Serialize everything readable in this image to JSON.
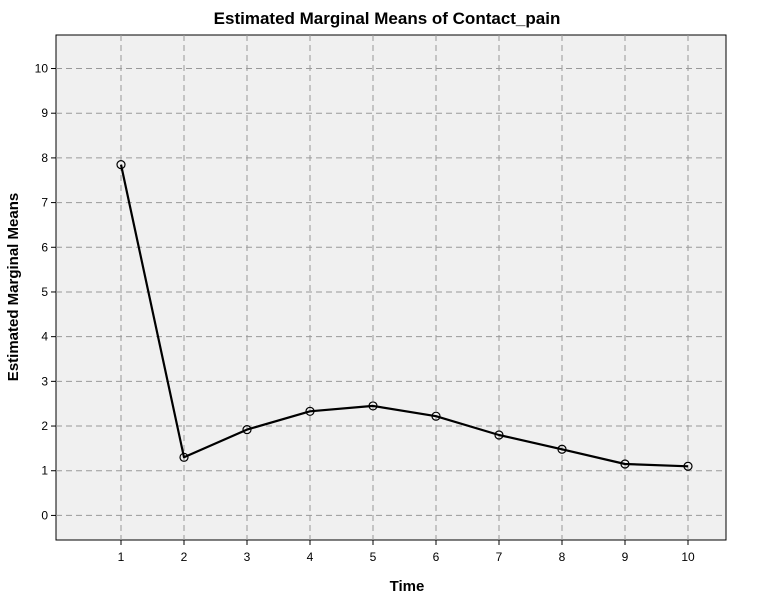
{
  "chart_data": {
    "type": "line",
    "title": "Estimated Marginal Means of Contact_pain",
    "xlabel": "Time",
    "ylabel": "Estimated Marginal Means",
    "x": [
      "1",
      "2",
      "3",
      "4",
      "5",
      "6",
      "7",
      "8",
      "9",
      "10"
    ],
    "series": [
      {
        "values": [
          7.85,
          1.3,
          1.92,
          2.33,
          2.45,
          2.22,
          1.8,
          1.48,
          1.15,
          1.1
        ]
      }
    ],
    "y_ticks": [
      "0",
      "1",
      "2",
      "3",
      "4",
      "5",
      "6",
      "7",
      "8",
      "9",
      "10"
    ],
    "ylim": [
      -0.55,
      10.75
    ],
    "grid": true,
    "legend": "none",
    "marker": "open-circle",
    "colors": {
      "line": "#000000",
      "plot_background": "#f0f0f0",
      "grid": "#999999"
    }
  }
}
